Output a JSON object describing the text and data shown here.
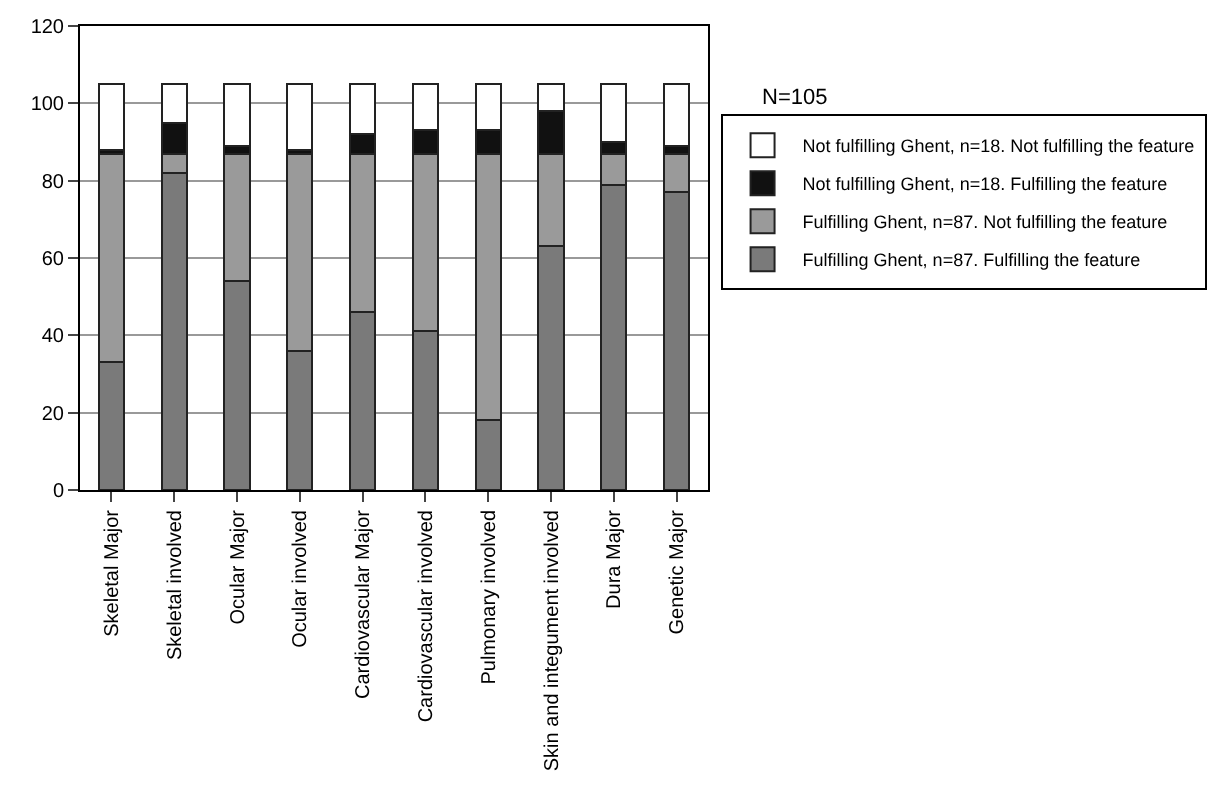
{
  "chart_data": {
    "type": "bar",
    "stacked": true,
    "categories": [
      "Skeletal Major",
      "Skeletal involved",
      "Ocular Major",
      "Ocular involved",
      "Cardiovascular Major",
      "Cardiovascular involved",
      "Pulmonary involved",
      "Skin and integument involved",
      "Dura Major",
      "Genetic Major"
    ],
    "series": [
      {
        "name": "Fulfilling Ghent, n=87. Fulfilling the feature",
        "color": "#7a7a7a",
        "values": [
          33,
          82,
          54,
          36,
          46,
          41,
          18,
          63,
          79,
          77
        ]
      },
      {
        "name": "Fulfilling Ghent, n=87. Not fulfilling the feature",
        "color": "#9a9a9a",
        "values": [
          54,
          5,
          33,
          51,
          41,
          46,
          69,
          24,
          8,
          10
        ]
      },
      {
        "name": "Not fulfilling Ghent, n=18. Fulfilling the feature",
        "color": "#111111",
        "values": [
          1,
          8,
          2,
          1,
          5,
          6,
          6,
          11,
          3,
          2
        ]
      },
      {
        "name": "Not fulfilling Ghent, n=18. Not fulfilling the feature",
        "color": "#ffffff",
        "values": [
          17,
          10,
          16,
          17,
          13,
          12,
          12,
          7,
          15,
          16
        ]
      }
    ],
    "ylim": [
      0,
      120
    ],
    "yticks": [
      0,
      20,
      40,
      60,
      80,
      100,
      120
    ],
    "grid": "y",
    "legend": "right",
    "annotations": [
      "N=105"
    ]
  }
}
